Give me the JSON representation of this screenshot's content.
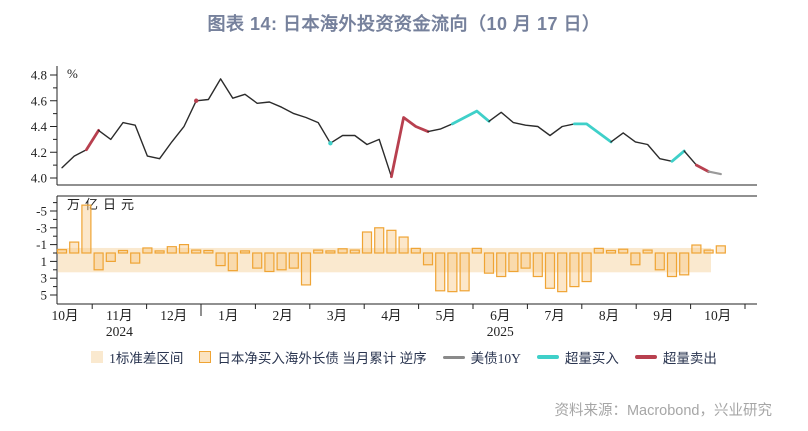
{
  "title": "图表 14: 日本海外投资资金流向（10 月 17 日）",
  "source": "资料来源：Macrobond，兴业研究",
  "colors": {
    "title": "#76819c",
    "axis": "#222222",
    "line_base": "#2b2b2b",
    "line_gray": "#9a9a9a",
    "buy": "#3fd0c9",
    "sell": "#b8404f",
    "bar_stroke": "#efa434",
    "bar_fill": "#f7c27a",
    "band": "#fae9cf",
    "source_text": "#a6a6a6"
  },
  "legend": {
    "items": [
      {
        "label": "1标准差区间",
        "swatch": "band-square"
      },
      {
        "label": "日本净买入海外长债 当月累计 逆序",
        "swatch": "bar-square"
      },
      {
        "label": "美债10Y",
        "swatch": "gray-line"
      },
      {
        "label": "超量买入",
        "swatch": "teal-line"
      },
      {
        "label": "超量卖出",
        "swatch": "crimson-line"
      }
    ]
  },
  "chart_data": [
    {
      "type": "line",
      "title": "美债10Y",
      "unit_label": "%",
      "ylabel": "%",
      "ylim": [
        3.95,
        4.87
      ],
      "yticks": [
        4.0,
        4.2,
        4.4,
        4.6,
        4.8
      ],
      "yticks_minor": [
        4.1,
        4.3,
        4.5,
        4.7
      ],
      "x_unit": "week",
      "values": [
        4.08,
        4.17,
        4.22,
        4.37,
        4.3,
        4.43,
        4.41,
        4.17,
        4.15,
        4.28,
        4.4,
        4.6,
        4.61,
        4.77,
        4.62,
        4.65,
        4.58,
        4.59,
        4.55,
        4.5,
        4.47,
        4.43,
        4.27,
        4.33,
        4.33,
        4.26,
        4.3,
        4.01,
        4.47,
        4.4,
        4.36,
        4.38,
        4.42,
        4.47,
        4.52,
        4.44,
        4.51,
        4.43,
        4.41,
        4.4,
        4.33,
        4.4,
        4.42,
        4.42,
        4.35,
        4.28,
        4.35,
        4.28,
        4.26,
        4.15,
        4.13,
        4.21,
        4.1,
        4.05,
        4.03
      ],
      "colored_segments": {
        "sell": [
          [
            3,
            4
          ],
          [
            28,
            31
          ],
          [
            53,
            54
          ]
        ],
        "buy": [
          [
            33,
            36
          ],
          [
            43,
            46
          ],
          [
            51,
            52
          ]
        ],
        "gray": [
          [
            54,
            55
          ]
        ]
      },
      "dots": {
        "sell": [
          12
        ],
        "buy": [
          23
        ]
      }
    },
    {
      "type": "bar",
      "title": "日本净买入海外长债 当月累计 逆序",
      "unit_label": "万亿日元",
      "ylabel": "万亿日元",
      "axis_reversed": true,
      "ylim": [
        -6.8,
        6.1
      ],
      "yticks": [
        -5,
        -3,
        -1,
        1,
        3,
        5
      ],
      "yticks_minor": [
        -6,
        -4,
        -2,
        0,
        2,
        4
      ],
      "band_label": "1标准差区间",
      "band_range": [
        -0.6,
        2.3
      ],
      "x_unit": "week",
      "values": [
        -0.4,
        -1.3,
        -5.7,
        2.0,
        1.0,
        -0.3,
        1.2,
        -0.6,
        -0.25,
        -0.75,
        -1.0,
        -0.35,
        -0.3,
        1.5,
        2.1,
        -0.25,
        1.8,
        2.2,
        2.0,
        1.8,
        3.8,
        -0.35,
        -0.25,
        -0.5,
        -0.35,
        -2.5,
        -3.0,
        -2.7,
        -1.9,
        -0.55,
        1.4,
        4.5,
        4.6,
        4.5,
        -0.55,
        2.4,
        2.8,
        2.2,
        1.8,
        2.8,
        4.2,
        4.6,
        4.0,
        3.4,
        -0.55,
        -0.3,
        -0.45,
        1.4,
        -0.35,
        2.0,
        2.8,
        2.6,
        -0.95,
        -0.35,
        -0.85
      ]
    },
    {
      "type": "x-axis",
      "month_labels": [
        "10月",
        "11月",
        "12月",
        "1月",
        "2月",
        "3月",
        "4月",
        "5月",
        "6月",
        "7月",
        "8月",
        "9月",
        "10月"
      ],
      "year_labels": [
        {
          "text": "2024",
          "month_index": 1
        },
        {
          "text": "2025",
          "month_index": 8
        }
      ]
    }
  ]
}
